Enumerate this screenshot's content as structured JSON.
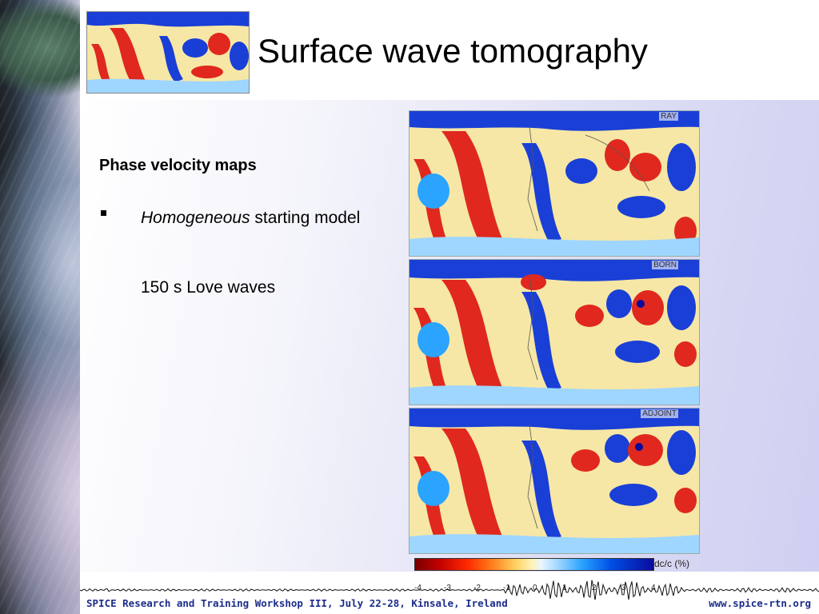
{
  "slide": {
    "title": "Surface wave tomography",
    "heading": "Phase velocity maps",
    "bullet": {
      "italic": "Homogeneous",
      "rest": " starting model"
    },
    "subtext": "150 s Love waves"
  },
  "panels": [
    {
      "label": "RAY"
    },
    {
      "label": "BORN"
    },
    {
      "label": "ADJOINT"
    }
  ],
  "colorbar": {
    "label": "dc/c (%)",
    "ticks": [
      "-4",
      "-3",
      "-2",
      "-1",
      "0",
      "1",
      "2",
      "3",
      "4"
    ]
  },
  "footer": {
    "left": "SPICE Research and Training Workshop III, July 22-28, Kinsale, Ireland",
    "right": "www.spice-rtn.org"
  },
  "colors": {
    "accent": "#1c2d8a",
    "positive": "#e0281e",
    "negative": "#1a3fd6",
    "neutral": "#f6e7a6"
  }
}
